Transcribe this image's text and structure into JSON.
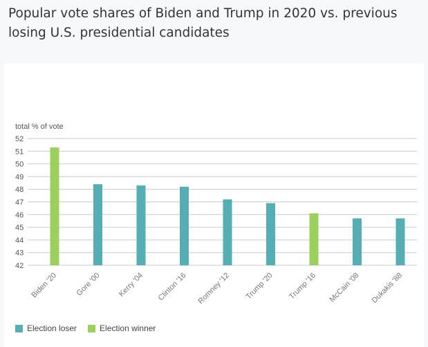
{
  "title": "Popular vote shares of Biden and Trump in 2020 vs. previous losing U.S. presidential candidates",
  "colors": {
    "loser": "#55aeb4",
    "winner": "#9cd05c",
    "grid": "#c7c9cc",
    "text": "#555555"
  },
  "legend": [
    {
      "label": "Election loser",
      "color": "#55aeb4"
    },
    {
      "label": "Election winner",
      "color": "#9cd05c"
    }
  ],
  "chart_data": {
    "type": "bar",
    "ylabel": "total % of vote",
    "ylim": [
      42,
      52
    ],
    "yticks": [
      42,
      43,
      44,
      45,
      46,
      47,
      48,
      49,
      50,
      51,
      52
    ],
    "grid": true,
    "legend_position": "bottom-left",
    "categories": [
      "Biden '20",
      "Gore '00",
      "Kerry '04",
      "Clinton '16",
      "Romney '12",
      "Trump '20",
      "Trump '16",
      "McCain '08",
      "Dukakis '88"
    ],
    "values": [
      51.3,
      48.4,
      48.3,
      48.2,
      47.2,
      46.9,
      46.1,
      45.7,
      45.7
    ],
    "outcome": [
      "Election winner",
      "Election loser",
      "Election loser",
      "Election loser",
      "Election loser",
      "Election loser",
      "Election winner",
      "Election loser",
      "Election loser"
    ]
  }
}
